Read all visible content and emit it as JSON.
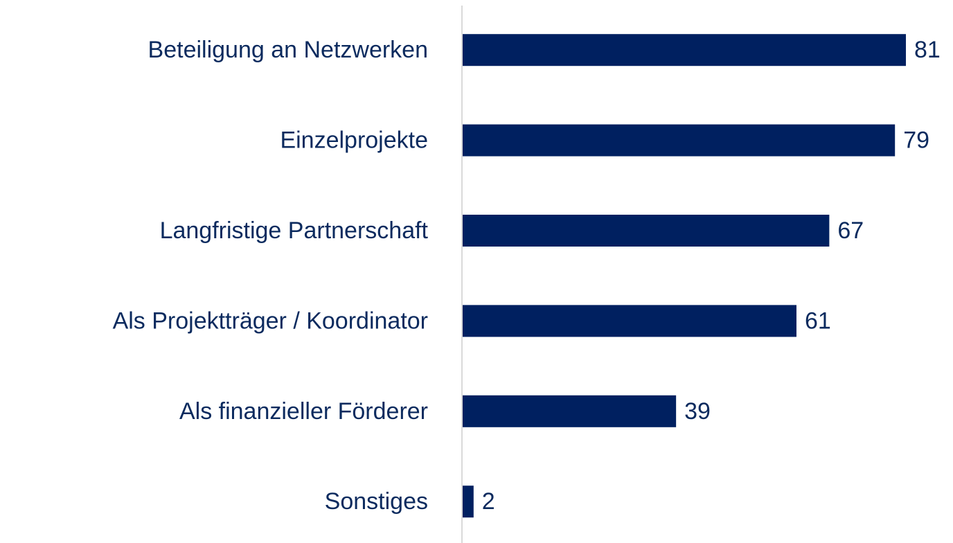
{
  "chart_data": {
    "type": "barh",
    "categories": [
      "Beteiligung an Netzwerken",
      "Einzelprojekte",
      "Langfristige Partnerschaft",
      "Als Projektträger / Koordinator",
      "Als finanzieller Förderer",
      "Sonstiges"
    ],
    "values": [
      81,
      79,
      67,
      61,
      39,
      2
    ],
    "color": "#002060"
  }
}
